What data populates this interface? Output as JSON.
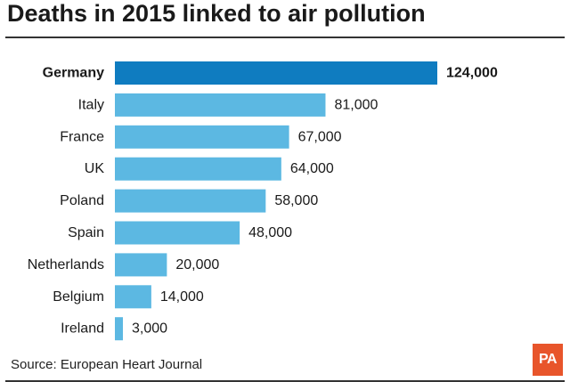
{
  "title": "Deaths in 2015 linked to air pollution",
  "source": "Source: European Heart Journal",
  "logo_text": "PA",
  "colors": {
    "highlight_bar": "#0f7cc0",
    "bar": "#5cb8e2",
    "logo": "#e8552b",
    "text": "#1a1a1a"
  },
  "chart_data": {
    "type": "bar",
    "orientation": "horizontal",
    "title": "Deaths in 2015 linked to air pollution",
    "categories": [
      "Germany",
      "Italy",
      "France",
      "UK",
      "Poland",
      "Spain",
      "Netherlands",
      "Belgium",
      "Ireland"
    ],
    "values": [
      124000,
      81000,
      67000,
      64000,
      58000,
      48000,
      20000,
      14000,
      3000
    ],
    "value_labels": [
      "124,000",
      "81,000",
      "67,000",
      "64,000",
      "58,000",
      "48,000",
      "20,000",
      "14,000",
      "3,000"
    ],
    "highlight": "Germany",
    "xlim": [
      0,
      124000
    ],
    "xlabel": "",
    "ylabel": "",
    "grid": false,
    "legend": "none"
  }
}
